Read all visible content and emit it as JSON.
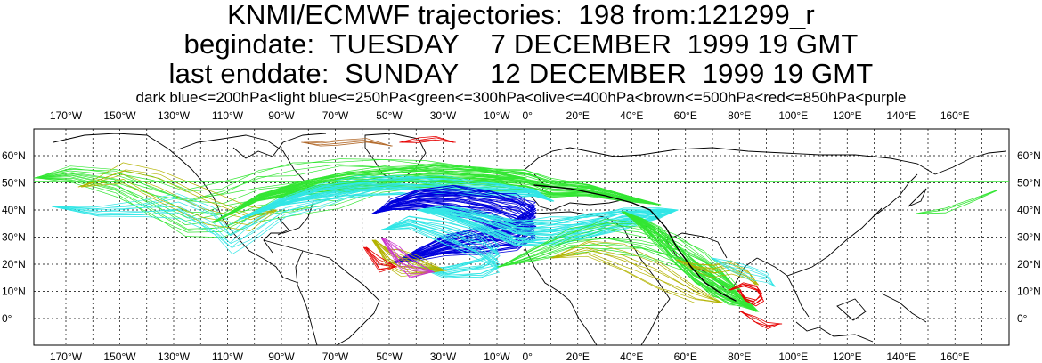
{
  "header": {
    "title_line1": "KNMI/ECMWF trajectories:  198 from:121299_r",
    "title_line2": "begindate:  TUESDAY    7 DECEMBER  1999 19 GMT",
    "title_line3": "last enddate:  SUNDAY    12 DECEMBER  1999 19 GMT",
    "legend": "dark blue<=200hPa<light blue<=250hPa<green<=300hPa<olive<=400hPa<brown<=500hPa<red<=850hPa<purple"
  },
  "map": {
    "lon_labels": [
      "170°W",
      "150°W",
      "130°W",
      "110°W",
      "90°W",
      "70°W",
      "50°W",
      "30°W",
      "10°W",
      "0°",
      "20°E",
      "40°E",
      "60°E",
      "80°E",
      "100°E",
      "120°E",
      "140°E",
      "160°E"
    ],
    "lat_labels": [
      "60°N",
      "50°N",
      "40°N",
      "30°N",
      "20°N",
      "10°N",
      "0°"
    ],
    "colors": {
      "dark_blue": "#0000dd",
      "light_blue": "#33e6e6",
      "green": "#33e633",
      "olive": "#b3b300",
      "brown": "#b36b2d",
      "red": "#e60000",
      "purple": "#cc33cc"
    }
  }
}
